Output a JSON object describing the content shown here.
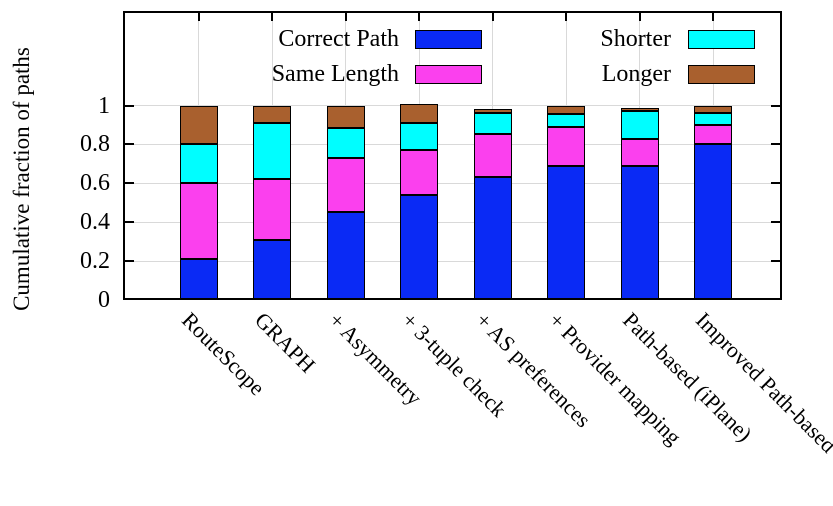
{
  "chart_data": {
    "type": "bar",
    "stacked": true,
    "title": "",
    "xlabel": "",
    "ylabel": "Cumulative fraction of paths",
    "ylim": [
      0,
      1.49
    ],
    "yticks": [
      0,
      0.2,
      0.4,
      0.6,
      0.8,
      1
    ],
    "ytick_labels": [
      "0",
      "0.2",
      "0.4",
      "0.6",
      "0.8",
      "1"
    ],
    "grid": true,
    "legend_position": "top-inside-two-columns",
    "categories": [
      "RouteScope",
      "GRAPH",
      "+ Asymmetry",
      "+ 3-tuple check",
      "+ AS preferences",
      "+ Provider mapping",
      "Path-based (iPlane)",
      "Improved Path-based"
    ],
    "series": [
      {
        "name": "Correct Path",
        "color": "#0a2af5",
        "values": [
          0.21,
          0.31,
          0.45,
          0.54,
          0.63,
          0.69,
          0.69,
          0.8
        ]
      },
      {
        "name": "Same Length",
        "color": "#fb40ee",
        "values": [
          0.39,
          0.31,
          0.28,
          0.23,
          0.225,
          0.2,
          0.14,
          0.1
        ]
      },
      {
        "name": "Shorter",
        "color": "#00feff",
        "values": [
          0.2,
          0.29,
          0.155,
          0.14,
          0.105,
          0.065,
          0.14,
          0.06
        ]
      },
      {
        "name": "Longer",
        "color": "#a9602e",
        "values": [
          0.2,
          0.09,
          0.115,
          0.1,
          0.02,
          0.045,
          0.015,
          0.04
        ]
      }
    ],
    "stacked_totals": [
      1.0,
      1.0,
      1.0,
      1.01,
      0.98,
      1.0,
      0.985,
      1.0
    ]
  },
  "colors": {
    "background": "#ffffff",
    "axis": "#000000",
    "grid": "#d9d9d9"
  }
}
